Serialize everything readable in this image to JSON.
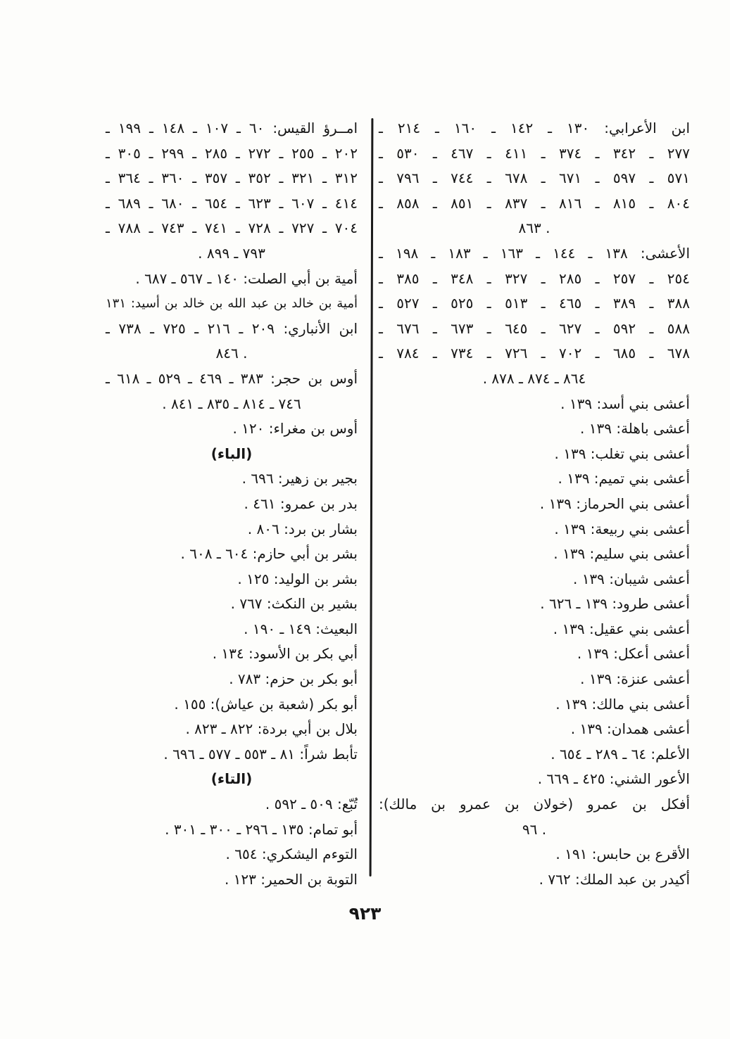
{
  "document": {
    "type": "scanned-book-index-page",
    "language": "Arabic",
    "page_number": "٩٢٣"
  },
  "colors": {
    "paper": "#fdfdfb",
    "ink": "#161616"
  },
  "index": {
    "columns": [
      {
        "id": "right-column",
        "position": "right",
        "lines": [
          {
            "text": "ابن الأعرابي: ١٣٠ ـ ١٤٢ ـ ١٦٠ ـ ٢١٤ ـ",
            "align": "justify"
          },
          {
            "text": "٢٧٧ ـ ٣٤٢ ـ ٣٧٤ ـ ٤١١ ـ ٤٦٧ ـ ٥٣٠ ـ",
            "align": "justify"
          },
          {
            "text": "٥٧١ ـ ٥٩٧ ـ ٦٧١ ـ ٦٧٨ ـ ٧٤٤ ـ ٧٩٦ ـ",
            "align": "justify"
          },
          {
            "text": "٨٠٤ ـ ٨١٥ ـ ٨١٦ ـ ٨٣٧ ـ ٨٥١ ـ ٨٥٨ ـ",
            "align": "justify"
          },
          {
            "text": "٨٦٣ .",
            "align": "center"
          },
          {
            "text": "الأعشى: ١٣٨ ـ ١٤٤ ـ ١٦٣ ـ ١٨٣ ـ ١٩٨ ـ",
            "align": "justify"
          },
          {
            "text": "٢٥٤ ـ ٢٥٧ ـ ٢٨٥ ـ ٣٢٧ ـ ٣٤٨ ـ ٣٨٥ ـ",
            "align": "justify"
          },
          {
            "text": "٣٨٨ ـ ٣٨٩ ـ ٤٦٥ ـ ٥١٣ ـ ٥٢٥ ـ ٥٢٧ ـ",
            "align": "justify"
          },
          {
            "text": "٥٨٨ ـ ٥٩٢ ـ ٦٢٧ ـ ٦٤٥ ـ ٦٧٣ ـ ٦٧٦ ـ",
            "align": "justify"
          },
          {
            "text": "٦٧٨ ـ ٦٨٥ ـ ٧٠٢ ـ ٧٢٦ ـ ٧٣٤ ـ ٧٨٤ ـ",
            "align": "justify"
          },
          {
            "text": "٨٦٤ ـ ٨٧٤ ـ ٨٧٨ .",
            "align": "center"
          },
          {
            "text": "أعشى بني أسد: ١٣٩ .",
            "align": "right"
          },
          {
            "text": "أعشى باهلة: ١٣٩ .",
            "align": "right"
          },
          {
            "text": "أعشى بني تغلب: ١٣٩ .",
            "align": "right"
          },
          {
            "text": "أعشى بني تميم: ١٣٩ .",
            "align": "right"
          },
          {
            "text": "أعشى بني الحرماز: ١٣٩ .",
            "align": "right"
          },
          {
            "text": "أعشى بني ربيعة: ١٣٩ .",
            "align": "right"
          },
          {
            "text": "أعشى بني سليم: ١٣٩ .",
            "align": "right"
          },
          {
            "text": "أعشى شيبان: ١٣٩ .",
            "align": "right"
          },
          {
            "text": "أعشى طرود: ١٣٩ ـ ٦٢٦ .",
            "align": "right"
          },
          {
            "text": "أعشى بني عقيل: ١٣٩ .",
            "align": "right"
          },
          {
            "text": "أعشى أعكل: ١٣٩ .",
            "align": "right"
          },
          {
            "text": "أعشى عنزة: ١٣٩ .",
            "align": "right"
          },
          {
            "text": "أعشى بني مالك: ١٣٩ .",
            "align": "right"
          },
          {
            "text": "أعشى همدان: ١٣٩ .",
            "align": "right"
          },
          {
            "text": "الأعلم: ٦٤ ـ ٢٨٩ ـ ٦٥٤ .",
            "align": "right"
          },
          {
            "text": "الأعور الشني: ٤٢٥ ـ ٦٦٩ .",
            "align": "right"
          },
          {
            "text": "أفكل بن عمرو (خولان بن عمرو بن مالك):",
            "align": "justify"
          },
          {
            "text": "٩٦ .",
            "align": "center"
          },
          {
            "text": "الأقرع بن حابس: ١٩١ .",
            "align": "right"
          },
          {
            "text": "أكيدر بن عبد الملك: ٧٦٢ .",
            "align": "right"
          }
        ]
      },
      {
        "id": "left-column",
        "position": "left",
        "lines": [
          {
            "text": "امــرؤ القيس: ٦٠ ـ ١٠٧ ـ ١٤٨ ـ ١٩٩ ـ",
            "align": "justify"
          },
          {
            "text": "٢٠٢ ـ ٢٥٥ ـ ٢٧٢ ـ ٢٨٥ ـ ٢٩٩ ـ ٣٠٥ ـ",
            "align": "justify"
          },
          {
            "text": "٣١٢ ـ ٣٢١ ـ ٣٥٢ ـ ٣٥٧ ـ ٣٦٠ ـ ٣٦٤ ـ",
            "align": "justify"
          },
          {
            "text": "٤١٤ ـ ٦٠٧ ـ ٦٢٣ ـ ٦٥٤ ـ ٦٨٠ ـ ٦٨٩ ـ",
            "align": "justify"
          },
          {
            "text": "٧٠٤ ـ ٧٢٧ ـ ٧٢٨ ـ ٧٤١ ـ ٧٤٣ ـ ٧٨٨ ـ",
            "align": "justify"
          },
          {
            "text": "٧٩٣ ـ ٨٩٩ .",
            "align": "center"
          },
          {
            "text": "أمية بن أبي الصلت: ١٤٠ ـ ٥٦٧ ـ ٦٨٧ .",
            "align": "right"
          },
          {
            "text": "أمية بن خالد بن عبد الله بن خالد بن أسيد: ١٣١ .",
            "align": "justify"
          },
          {
            "text": "ابن الأنباري: ٢٠٩ ـ ٢١٦ ـ ٧٢٥ ـ ٧٣٨ ـ",
            "align": "justify"
          },
          {
            "text": "٨٤٦ .",
            "align": "center"
          },
          {
            "text": "أوس بن حجر: ٣٨٣ ـ ٤٦٩ ـ ٥٢٩ ـ ٦١٨ ـ",
            "align": "justify"
          },
          {
            "text": "٧٤٦ ـ ٨١٤ ـ ٨٣٥ ـ ٨٤١ .",
            "align": "center"
          },
          {
            "text": "أوس بن مغراء: ١٢٠ .",
            "align": "right"
          },
          {
            "text": "(الباء)",
            "align": "center",
            "heading": true
          },
          {
            "text": "بجير بن زهير: ٦٩٦ .",
            "align": "right"
          },
          {
            "text": "بدر بن عمرو: ٤٦١ .",
            "align": "right"
          },
          {
            "text": "بشار بن برد: ٨٠٦ .",
            "align": "right"
          },
          {
            "text": "بشر بن أبي حازم: ٦٠٤ ـ ٦٠٨ .",
            "align": "right"
          },
          {
            "text": "بشر بن الوليد: ١٢٥ .",
            "align": "right"
          },
          {
            "text": "بشير بن النكث: ٧٦٧ .",
            "align": "right"
          },
          {
            "text": "البعيث: ١٤٩ ـ ١٩٠ .",
            "align": "right"
          },
          {
            "text": "أبي بكر بن الأسود: ١٣٤ .",
            "align": "right"
          },
          {
            "text": "أبو بكر بن حزم: ٧٨٣ .",
            "align": "right"
          },
          {
            "text": "أبو بكر (شعبة بن عياش): ١٥٥ .",
            "align": "right"
          },
          {
            "text": "بلال بن أبي بردة: ٨٢٢ ـ ٨٢٣ .",
            "align": "right"
          },
          {
            "text": "تأبط شراً: ٨١ ـ ٥٥٣ ـ ٥٧٧ ـ ٦٩٦ .",
            "align": "right"
          },
          {
            "text": "(التاء)",
            "align": "center",
            "heading": true
          },
          {
            "text": "تُبّع: ٥٠٩ ـ ٥٩٢ .",
            "align": "right"
          },
          {
            "text": "أبو تمام: ١٣٥ ـ ٢٩٦ ـ ٣٠٠ ـ ٣٠١ .",
            "align": "right"
          },
          {
            "text": "التوءم اليشكري: ٦٥٤ .",
            "align": "right"
          },
          {
            "text": "التوبة بن الحمير: ١٢٣ .",
            "align": "right"
          }
        ]
      }
    ]
  }
}
